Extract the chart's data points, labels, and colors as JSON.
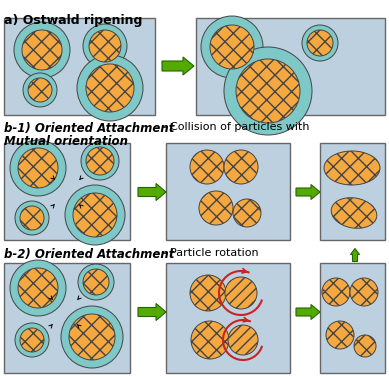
{
  "title_a": "a) Ostwald ripening",
  "title_b1_bold": "b-1) Oriented Attachment",
  "title_b1_normal": " - Collision of particles with",
  "title_b1_line2": "Mutual orientation",
  "title_b2_bold": "b-2) Oriented Attachment",
  "title_b2_normal": " - Particle rotation ",
  "bg_color": "#bdd0e0",
  "bg_texture": "#c5d8e8",
  "box_edge_color": "#666666",
  "circle_fill": "#f5a840",
  "circle_ring_color": "#7ec8c8",
  "circle_edge": "#444444",
  "arrow_fill": "#55aa00",
  "arrow_edge": "#226600",
  "hatch_cross": "xx",
  "hatch_diag": "///",
  "rotate_color": "#cc2222",
  "dashed_arrow_color": "#222222"
}
